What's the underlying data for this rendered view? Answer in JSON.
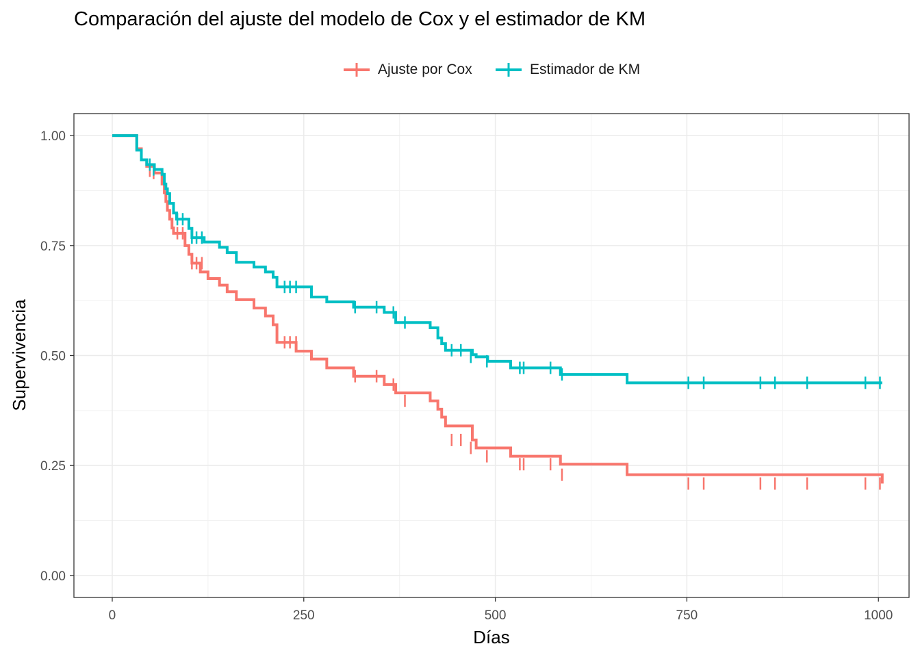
{
  "chart_data": {
    "type": "line",
    "step": true,
    "title": "Comparación del ajuste del modelo de Cox y el estimador de KM",
    "xlabel": "Días",
    "ylabel": "Supervivencia",
    "xlim": [
      -50,
      1040
    ],
    "ylim": [
      -0.05,
      1.05
    ],
    "xticks": [
      0,
      250,
      500,
      750,
      1000
    ],
    "xtick_labels": [
      "0",
      "250",
      "500",
      "750",
      "1000"
    ],
    "yticks": [
      0,
      0.25,
      0.5,
      0.75,
      1.0
    ],
    "ytick_labels": [
      "0.00",
      "0.25",
      "0.50",
      "0.75",
      "1.00"
    ],
    "grid": true,
    "legend_position": "top",
    "series": [
      {
        "name": "Ajuste por Cox",
        "color": "#F8766D",
        "x": [
          0,
          32,
          38,
          45,
          55,
          65,
          68,
          70,
          72,
          75,
          78,
          80,
          84,
          95,
          100,
          104,
          115,
          125,
          140,
          150,
          162,
          185,
          200,
          210,
          215,
          240,
          260,
          280,
          315,
          345,
          355,
          370,
          415,
          425,
          430,
          435,
          470,
          475,
          490,
          520,
          585,
          672,
          1005
        ],
        "y": [
          1.0,
          0.97,
          0.945,
          0.93,
          0.915,
          0.89,
          0.87,
          0.85,
          0.83,
          0.81,
          0.79,
          0.778,
          0.778,
          0.75,
          0.73,
          0.71,
          0.69,
          0.675,
          0.66,
          0.645,
          0.627,
          0.608,
          0.59,
          0.57,
          0.53,
          0.51,
          0.492,
          0.472,
          0.453,
          0.453,
          0.434,
          0.415,
          0.397,
          0.378,
          0.36,
          0.34,
          0.308,
          0.29,
          0.29,
          0.271,
          0.253,
          0.229,
          0.209
        ],
        "censor_x": [
          49,
          54,
          85,
          92,
          104,
          110,
          117,
          225,
          232,
          240,
          317,
          345,
          367,
          382,
          443,
          455,
          468,
          489,
          532,
          537,
          572,
          587,
          752,
          772,
          846,
          865,
          907,
          983,
          1002
        ],
        "censor_y": [
          0.92,
          0.915,
          0.778,
          0.778,
          0.71,
          0.71,
          0.71,
          0.53,
          0.53,
          0.53,
          0.453,
          0.453,
          0.434,
          0.397,
          0.308,
          0.308,
          0.29,
          0.271,
          0.253,
          0.253,
          0.253,
          0.229,
          0.209,
          0.209,
          0.209,
          0.209,
          0.209,
          0.209,
          0.209
        ]
      },
      {
        "name": "Estimador de KM",
        "color": "#00BFC4",
        "x": [
          0,
          32,
          38,
          45,
          55,
          65,
          68,
          70,
          72,
          75,
          80,
          84,
          100,
          104,
          120,
          140,
          150,
          162,
          185,
          200,
          210,
          215,
          260,
          280,
          315,
          355,
          370,
          415,
          425,
          430,
          435,
          470,
          475,
          490,
          520,
          585,
          672,
          1005
        ],
        "y": [
          1.0,
          0.967,
          0.945,
          0.934,
          0.923,
          0.912,
          0.89,
          0.879,
          0.868,
          0.846,
          0.824,
          0.81,
          0.789,
          0.768,
          0.758,
          0.746,
          0.734,
          0.712,
          0.701,
          0.69,
          0.678,
          0.656,
          0.633,
          0.622,
          0.61,
          0.598,
          0.575,
          0.563,
          0.54,
          0.527,
          0.512,
          0.502,
          0.497,
          0.487,
          0.472,
          0.457,
          0.438,
          0.438
        ],
        "censor_x": [
          49,
          54,
          85,
          92,
          104,
          110,
          117,
          225,
          232,
          240,
          317,
          345,
          367,
          382,
          443,
          455,
          468,
          489,
          532,
          537,
          572,
          587,
          752,
          772,
          846,
          865,
          907,
          983,
          1002
        ],
        "censor_y": [
          0.934,
          0.923,
          0.81,
          0.81,
          0.768,
          0.768,
          0.768,
          0.656,
          0.656,
          0.656,
          0.61,
          0.61,
          0.598,
          0.575,
          0.512,
          0.512,
          0.497,
          0.487,
          0.472,
          0.472,
          0.472,
          0.457,
          0.438,
          0.438,
          0.438,
          0.438,
          0.438,
          0.438,
          0.438
        ]
      }
    ]
  }
}
